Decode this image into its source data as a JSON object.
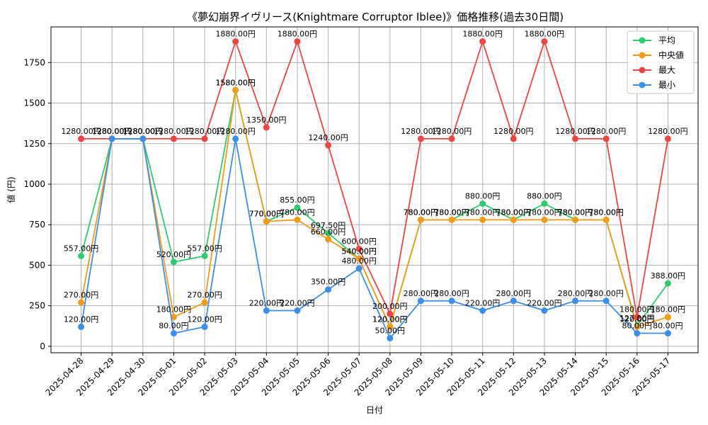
{
  "chart_data": {
    "type": "line",
    "title": "《夢幻崩界イヴリース(Knightmare Corruptor Iblee)》価格推移(過去30日間)",
    "xlabel": "日付",
    "ylabel": "値 (円)",
    "ylim": [
      -40,
      1970
    ],
    "yticks": [
      0,
      250,
      500,
      750,
      1000,
      1250,
      1500,
      1750
    ],
    "grid": true,
    "legend_position": "top-right",
    "categories": [
      "2025-04-28",
      "2025-04-29",
      "2025-04-30",
      "2025-05-01",
      "2025-05-02",
      "2025-05-03",
      "2025-05-04",
      "2025-05-05",
      "2025-05-06",
      "2025-05-07",
      "2025-05-08",
      "2025-05-09",
      "2025-05-10",
      "2025-05-11",
      "2025-05-12",
      "2025-05-13",
      "2025-05-14",
      "2025-05-15",
      "2025-05-16",
      "2025-05-17"
    ],
    "series": [
      {
        "name": "平均",
        "color": "#2ecc71",
        "values": [
          557,
          1280,
          1280,
          520,
          557,
          1580,
          770,
          855,
          697.5,
          540,
          120,
          780,
          780,
          880,
          780,
          880,
          780,
          780,
          127,
          388
        ]
      },
      {
        "name": "中央値",
        "color": "#f39c12",
        "values": [
          270,
          1280,
          1280,
          180,
          270,
          1580,
          770,
          780,
          660,
          540,
          120,
          780,
          780,
          780,
          780,
          780,
          780,
          780,
          120,
          180
        ]
      },
      {
        "name": "最大",
        "color": "#ef4444",
        "values": [
          1280,
          1280,
          1280,
          1280,
          1280,
          1880,
          1350,
          1880,
          1240,
          600,
          200,
          1280,
          1280,
          1880,
          1280,
          1880,
          1280,
          1280,
          180,
          1280
        ]
      },
      {
        "name": "最小",
        "color": "#3b8eea",
        "values": [
          120,
          1280,
          1280,
          80,
          120,
          1280,
          220,
          220,
          350,
          480,
          50,
          280,
          280,
          220,
          280,
          220,
          280,
          280,
          80,
          80
        ]
      }
    ],
    "value_suffix": "円"
  }
}
